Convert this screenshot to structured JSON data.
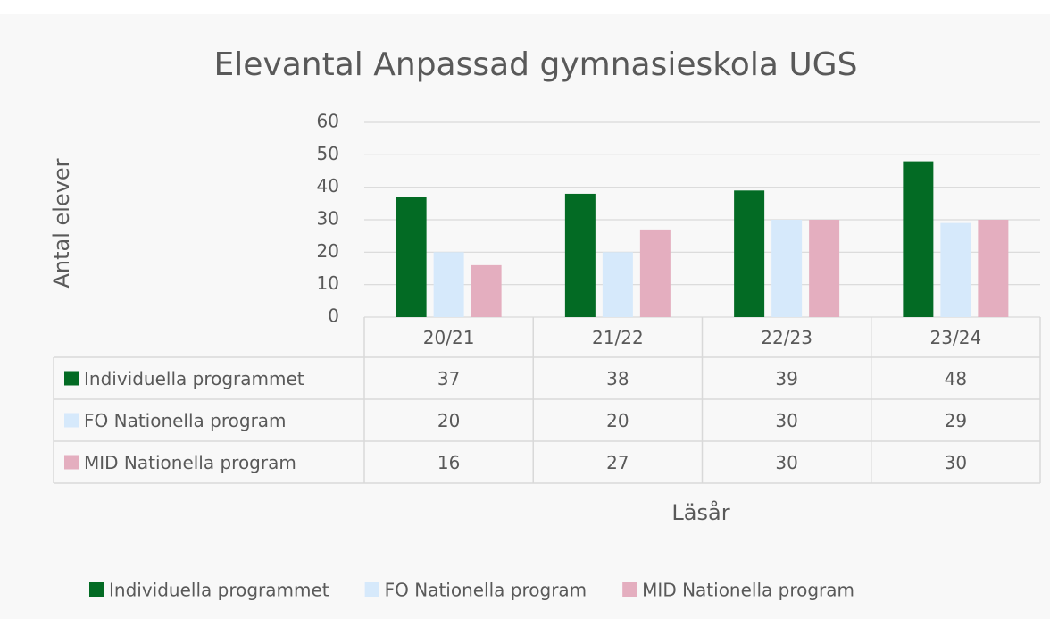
{
  "chart_data": {
    "type": "bar",
    "title": "Elevantal Anpassad gymnasieskola UGS",
    "y_label": "Antal elever",
    "x_label": "Läsår",
    "categories": [
      "20/21",
      "21/22",
      "22/23",
      "23/24"
    ],
    "series": [
      {
        "name": "Individuella programmet",
        "color": "#036b24",
        "values": [
          37,
          38,
          39,
          48
        ]
      },
      {
        "name": "FO Nationella program",
        "color": "#d6e9fb",
        "values": [
          20,
          20,
          30,
          29
        ]
      },
      {
        "name": "MID Nationella program",
        "color": "#e4aebf",
        "values": [
          16,
          27,
          30,
          30
        ]
      }
    ],
    "ylim": [
      0,
      60
    ],
    "yticks": [
      0,
      10,
      20,
      30,
      40,
      50,
      60
    ],
    "grid": true,
    "legend": "bottom"
  }
}
